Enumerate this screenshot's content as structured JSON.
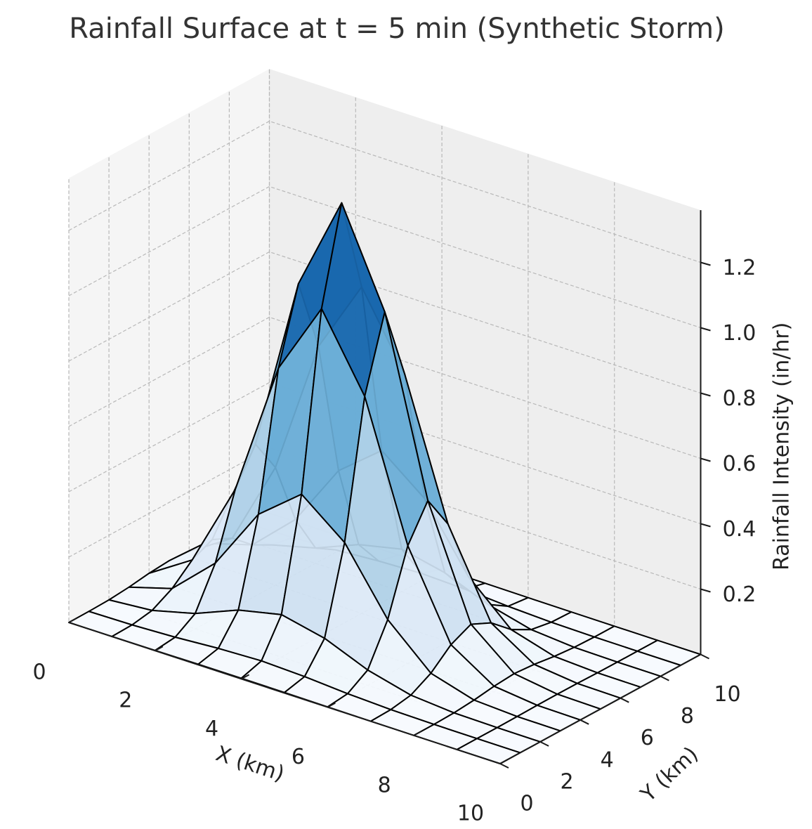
{
  "chart_data": {
    "type": "surface",
    "title": "Rainfall Surface at t = 5 min (Synthetic Storm)",
    "xlabel": "X (km)",
    "ylabel": "Y (km)",
    "zlabel": "Rainfall Intensity (in/hr)",
    "x_ticks": [
      "0",
      "2",
      "4",
      "6",
      "8",
      "10"
    ],
    "y_ticks": [
      "0",
      "2",
      "4",
      "6",
      "8",
      "10"
    ],
    "z_ticks": [
      "0.2",
      "0.4",
      "0.6",
      "0.8",
      "1.0",
      "1.2"
    ],
    "xlim": [
      0,
      10
    ],
    "ylim": [
      0,
      10
    ],
    "zlim": [
      0.0,
      1.36
    ],
    "grid": true,
    "colormap": "Blues",
    "x": [
      0,
      1,
      2,
      3,
      4,
      5,
      6,
      7,
      8,
      9,
      10
    ],
    "y": [
      0,
      1,
      2,
      3,
      4,
      5,
      6,
      7,
      8,
      9,
      10
    ],
    "storm_center_km": [
      4,
      5
    ],
    "peak_intensity": 1.29,
    "spread_km": 1.4
  },
  "colors": {
    "pane_left": "#f5f5f5",
    "pane_back": "#eeeeee",
    "pane_floor": "#f0f0f0",
    "edge": "#000000"
  }
}
